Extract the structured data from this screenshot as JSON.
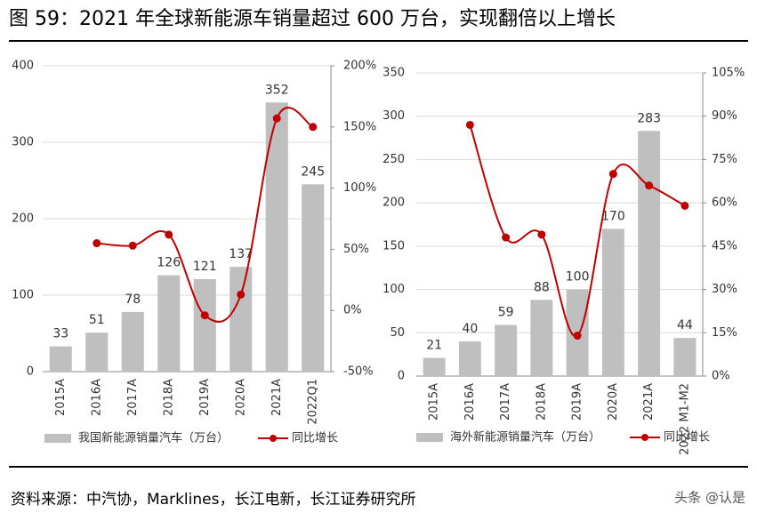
{
  "title": "图 59：2021 年全球新能源车销量超过 600 万台，实现翻倍以上增长",
  "source": "资料来源：中汽协，Marklines，长江电新，长江证券研究所",
  "watermark": "头条 @认是",
  "chart_data": [
    {
      "type": "bar",
      "categories": [
        "2015A",
        "2016A",
        "2017A",
        "2018A",
        "2019A",
        "2020A",
        "2021A",
        "2022Q1"
      ],
      "series": [
        {
          "name": "我国新能源销量汽车（万台）",
          "color": "#bfbfbf",
          "values": [
            33,
            51,
            78,
            126,
            121,
            137,
            352,
            245
          ]
        },
        {
          "name": "同比增长",
          "color": "#c00000",
          "axis": "y2",
          "type": "line",
          "values": [
            null,
            55,
            53,
            62,
            -4,
            13,
            157,
            150
          ]
        }
      ],
      "ylim": [
        0,
        400
      ],
      "yticks": [
        0,
        100,
        200,
        300,
        400
      ],
      "y2lim": [
        -50,
        200
      ],
      "y2ticks": [
        {
          "value": -50,
          "label": "-50%"
        },
        {
          "value": 0,
          "label": "0%"
        },
        {
          "value": 50,
          "label": "50%"
        },
        {
          "value": 100,
          "label": "100%"
        },
        {
          "value": 150,
          "label": "150%"
        },
        {
          "value": 200,
          "label": "200%"
        }
      ],
      "grid": true
    },
    {
      "type": "bar",
      "categories": [
        "2015A",
        "2016A",
        "2017A",
        "2018A",
        "2019A",
        "2020A",
        "2021A",
        "2022 M1-M2"
      ],
      "series": [
        {
          "name": "海外新能源销量汽车（万台）",
          "color": "#bfbfbf",
          "values": [
            21,
            40,
            59,
            88,
            100,
            170,
            283,
            44
          ]
        },
        {
          "name": "同比增长",
          "color": "#c00000",
          "axis": "y2",
          "type": "line",
          "values": [
            null,
            87,
            48,
            49,
            14,
            70,
            66,
            59
          ]
        }
      ],
      "ylim": [
        0,
        350
      ],
      "yticks": [
        0,
        50,
        100,
        150,
        200,
        250,
        300,
        350
      ],
      "y2lim": [
        0,
        105
      ],
      "y2ticks": [
        {
          "value": 0,
          "label": "0%"
        },
        {
          "value": 15,
          "label": "15%"
        },
        {
          "value": 30,
          "label": "30%"
        },
        {
          "value": 45,
          "label": "45%"
        },
        {
          "value": 60,
          "label": "60%"
        },
        {
          "value": 75,
          "label": "75%"
        },
        {
          "value": 90,
          "label": "90%"
        },
        {
          "value": 105,
          "label": "105%"
        }
      ],
      "grid": true
    }
  ]
}
